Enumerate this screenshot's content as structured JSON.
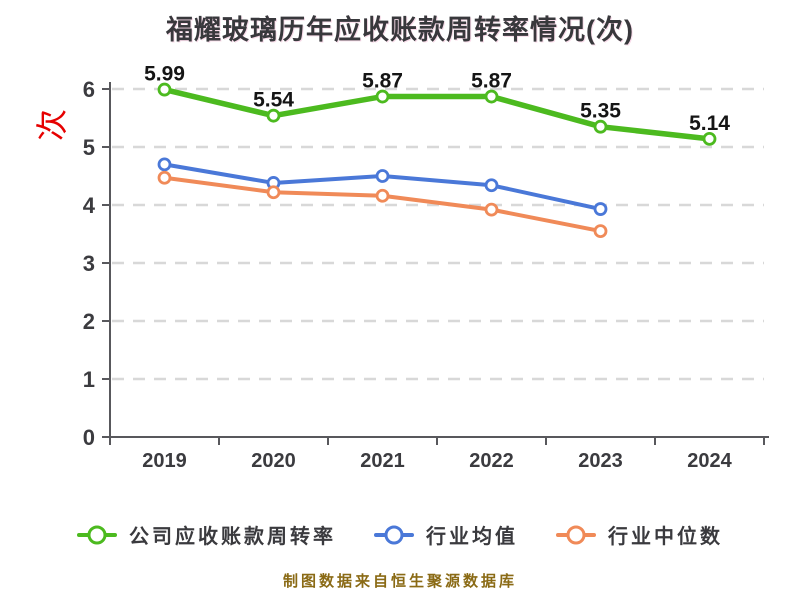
{
  "title": "福耀玻璃历年应收账款周转率情况(次)",
  "footer_note": "制图数据来自恒生聚源数据库",
  "y_axis_unit": "次",
  "ui_colors": {
    "title_text": "#38383c",
    "axis": "#58585c",
    "gridline": "#d8d8d8",
    "tick_text": "#3b3b3f",
    "data_label_text": "#151515",
    "y_axis_unit_text": "#e60000",
    "footer_text": "#8a6a15",
    "series_company": "#4cba1f",
    "series_industry_mean": "#4a78d8",
    "series_industry_median": "#f08a58"
  },
  "chart_data": {
    "type": "line",
    "title": "福耀玻璃历年应收账款周转率情况(次)",
    "categories": [
      "2019",
      "2020",
      "2021",
      "2022",
      "2023",
      "2024"
    ],
    "series": [
      {
        "name": "公司应收账款周转率",
        "color": "#4cba1f",
        "width": 5.5,
        "marker": "circle-white-fill",
        "show_labels": true,
        "values": [
          5.99,
          5.54,
          5.87,
          5.87,
          5.35,
          5.14
        ]
      },
      {
        "name": "行业均值",
        "color": "#4a78d8",
        "width": 4,
        "marker": "circle-white-fill",
        "show_labels": false,
        "values": [
          4.7,
          4.38,
          4.5,
          4.34,
          3.93,
          null
        ]
      },
      {
        "name": "行业中位数",
        "color": "#f08a58",
        "width": 4,
        "marker": "circle-white-fill",
        "show_labels": false,
        "values": [
          4.47,
          4.22,
          4.16,
          3.92,
          3.55,
          null
        ]
      }
    ],
    "xlabel": "",
    "ylabel": "次",
    "ylim": [
      0,
      6
    ],
    "yticks": [
      0,
      1,
      2,
      3,
      4,
      5,
      6
    ],
    "grid": "horizontal-dashed",
    "legend_position": "bottom"
  }
}
